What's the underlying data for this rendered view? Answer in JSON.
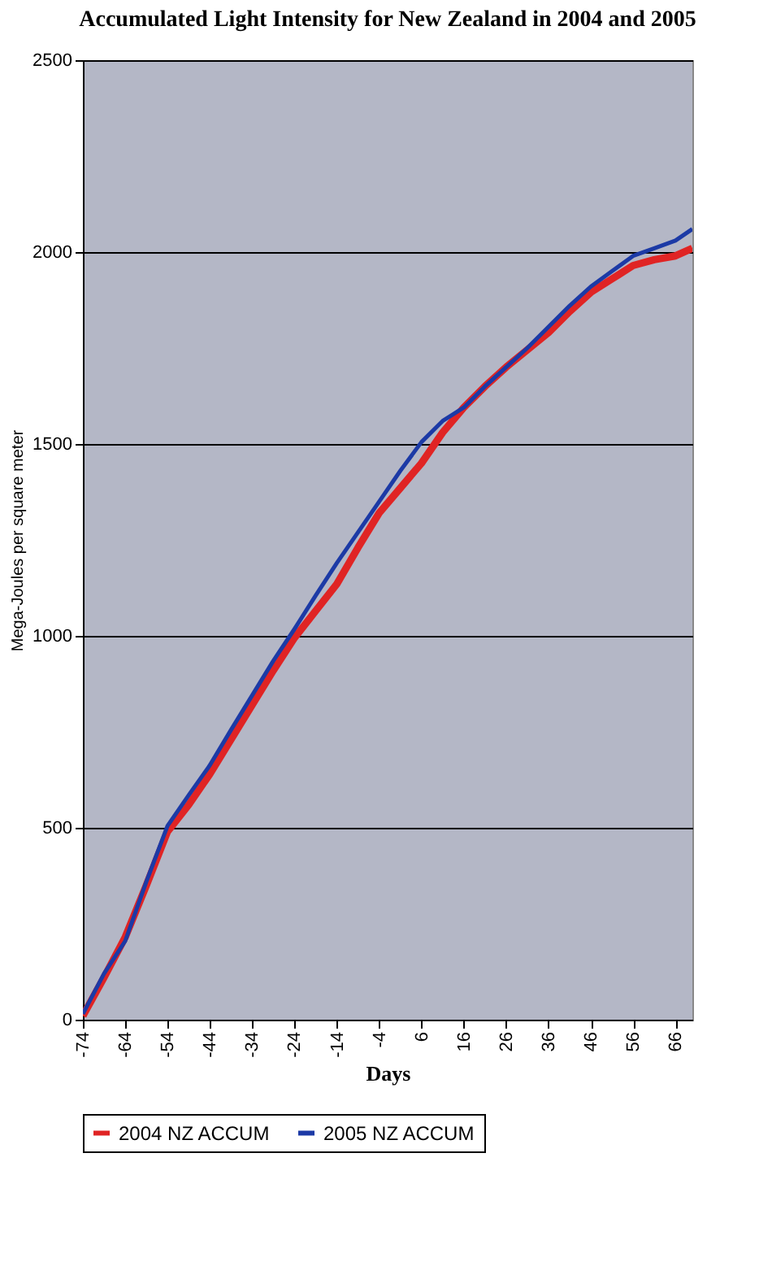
{
  "chart_data": {
    "type": "line",
    "title": "Accumulated Light Intensity for New Zealand in 2004 and 2005",
    "xlabel": "Days",
    "ylabel": "Mega-Joules per square meter",
    "x": [
      -74,
      -69,
      -64,
      -59,
      -54,
      -49,
      -44,
      -39,
      -34,
      -29,
      -24,
      -19,
      -14,
      -9,
      -4,
      1,
      6,
      11,
      16,
      21,
      26,
      31,
      36,
      41,
      46,
      51,
      56,
      61,
      66,
      70
    ],
    "series": [
      {
        "name": "2004 NZ ACCUM",
        "color": "#e02424",
        "values": [
          10,
          110,
          215,
          350,
          490,
          560,
          640,
          730,
          820,
          910,
          995,
          1065,
          1135,
          1230,
          1320,
          1385,
          1450,
          1530,
          1595,
          1650,
          1700,
          1745,
          1790,
          1845,
          1895,
          1930,
          1965,
          1980,
          1990,
          2010
        ]
      },
      {
        "name": "2005 NZ ACCUM",
        "color": "#1c3aa6",
        "values": [
          15,
          120,
          205,
          360,
          505,
          585,
          663,
          755,
          845,
          935,
          1018,
          1105,
          1190,
          1270,
          1350,
          1430,
          1505,
          1560,
          1595,
          1650,
          1700,
          1750,
          1805,
          1860,
          1910,
          1950,
          1990,
          2010,
          2030,
          2060
        ]
      }
    ],
    "xlim": [
      -74,
      70
    ],
    "xticks": [
      -74,
      -64,
      -54,
      -44,
      -34,
      -24,
      -14,
      -4,
      6,
      16,
      26,
      36,
      46,
      56,
      66
    ],
    "ylim": [
      0,
      2500
    ],
    "yticks": [
      0,
      500,
      1000,
      1500,
      2000,
      2500
    ],
    "grid": "y",
    "legend": "bottom"
  }
}
